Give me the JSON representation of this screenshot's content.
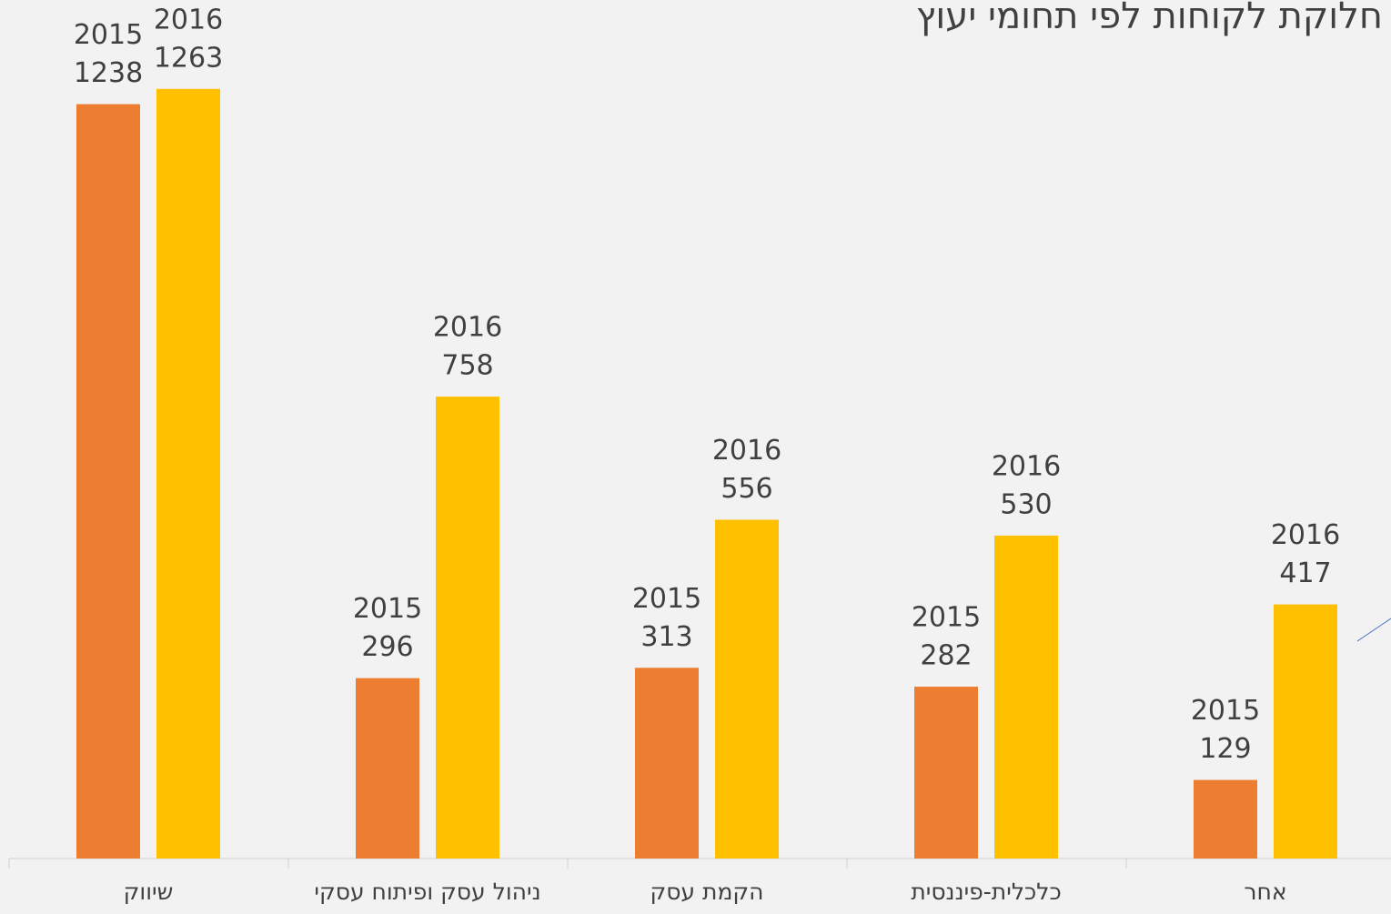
{
  "chart_data": {
    "type": "bar",
    "title": "חלוקת לקוחות לפי תחומי יעוץ",
    "categories": [
      "שיווק",
      "ניהול עסק ופיתוח עסקי",
      "הקמת עסק",
      "כלכלית-פיננסית",
      "אחר"
    ],
    "series": [
      {
        "name": "2015",
        "color": "#ed7d31",
        "values": [
          1238,
          296,
          313,
          282,
          129
        ]
      },
      {
        "name": "2016",
        "color": "#ffc000",
        "values": [
          1263,
          758,
          556,
          530,
          417
        ]
      }
    ],
    "ylim": [
      0,
      1400
    ]
  }
}
